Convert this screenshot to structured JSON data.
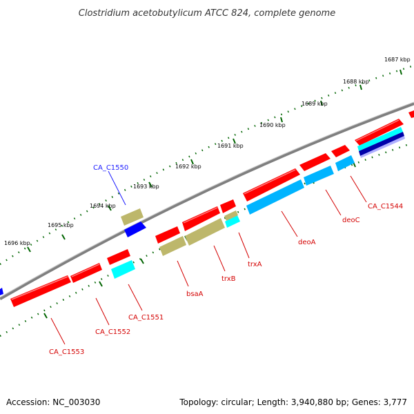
{
  "map": {
    "title": "Clostridium acetobutylicum ATCC 824, complete genome",
    "accession": "Accession: NC_003030",
    "topology": "Topology: circular; Length: 3,940,880 bp; Genes: 3,777"
  },
  "ticks": [
    "1687 kbp",
    "1688 kbp",
    "1689 kbp",
    "1690 kbp",
    "1691 kbp",
    "1692 kbp",
    "1693 kbp",
    "1694 kbp",
    "1695 kbp",
    "1696 kbp"
  ],
  "genes": [
    {
      "label": "CA_C1550",
      "colour": "#1a1aff"
    },
    {
      "label": "CA_C1544",
      "colour": "#d40000"
    },
    {
      "label": "deoC",
      "colour": "#d40000"
    },
    {
      "label": "deoA",
      "colour": "#d40000"
    },
    {
      "label": "trxA",
      "colour": "#d40000"
    },
    {
      "label": "trxB",
      "colour": "#d40000"
    },
    {
      "label": "bsaA",
      "colour": "#d40000"
    },
    {
      "label": "CA_C1551",
      "colour": "#d40000"
    },
    {
      "label": "CA_C1552",
      "colour": "#d40000"
    },
    {
      "label": "CA_C1553",
      "colour": "#d40000"
    }
  ],
  "feature_colours": {
    "forward_cds": "#ff0000",
    "reverse_cds": "#00b4ff",
    "rna": "#bdb76b",
    "other": "#00ffff",
    "blue_feature": "#0000ff",
    "backbone": "#7f7f7f",
    "ticks": "#006400"
  }
}
